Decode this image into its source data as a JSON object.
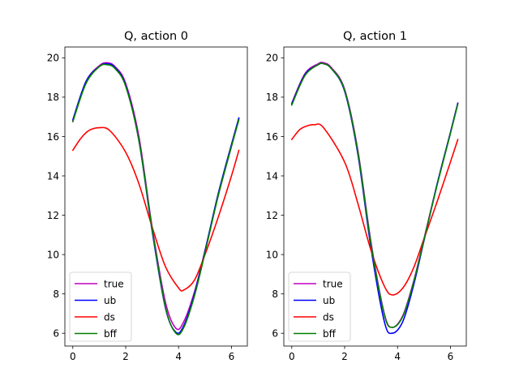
{
  "chart_data": [
    {
      "type": "line",
      "title": "Q, action 0",
      "xlabel": "",
      "ylabel": "",
      "xlim": [
        -0.3,
        6.6
      ],
      "ylim": [
        5.35,
        20.55
      ],
      "xticks": [
        0,
        2,
        4,
        6
      ],
      "yticks": [
        6,
        8,
        10,
        12,
        14,
        16,
        18,
        20
      ],
      "legend_position": "lower-left",
      "series": [
        {
          "name": "true",
          "color": "#bf00bf",
          "x": [
            0,
            0.5,
            1.0,
            1.3,
            1.6,
            2.0,
            2.5,
            3.0,
            3.5,
            3.9,
            4.2,
            4.6,
            5.0,
            5.5,
            6.0,
            6.28
          ],
          "y": [
            16.8,
            18.8,
            19.6,
            19.75,
            19.55,
            18.7,
            16.0,
            11.4,
            7.6,
            6.25,
            6.6,
            8.1,
            10.2,
            13.0,
            15.5,
            16.9
          ]
        },
        {
          "name": "ub",
          "color": "#0000ff",
          "x": [
            0,
            0.5,
            1.0,
            1.3,
            1.6,
            2.0,
            2.5,
            3.0,
            3.5,
            3.9,
            4.2,
            4.6,
            5.0,
            5.5,
            6.0,
            6.28
          ],
          "y": [
            16.85,
            18.8,
            19.55,
            19.7,
            19.5,
            18.6,
            15.8,
            11.2,
            7.3,
            6.05,
            6.4,
            8.0,
            10.2,
            13.1,
            15.6,
            16.95
          ]
        },
        {
          "name": "ds",
          "color": "#ff0000",
          "x": [
            0,
            0.3,
            0.6,
            1.0,
            1.4,
            2.0,
            2.5,
            3.0,
            3.5,
            4.0,
            4.2,
            4.6,
            5.0,
            5.5,
            6.0,
            6.28
          ],
          "y": [
            15.3,
            15.9,
            16.3,
            16.45,
            16.3,
            15.2,
            13.6,
            11.4,
            9.4,
            8.3,
            8.2,
            8.7,
            10.0,
            11.9,
            14.0,
            15.3
          ]
        },
        {
          "name": "bff",
          "color": "#008000",
          "x": [
            0,
            0.5,
            1.0,
            1.3,
            1.6,
            2.0,
            2.5,
            3.0,
            3.5,
            3.9,
            4.2,
            4.6,
            5.0,
            5.5,
            6.0,
            6.28
          ],
          "y": [
            16.75,
            18.7,
            19.55,
            19.65,
            19.45,
            18.55,
            15.8,
            11.3,
            7.35,
            6.0,
            6.3,
            7.9,
            10.1,
            13.0,
            15.5,
            16.85
          ]
        }
      ]
    },
    {
      "type": "line",
      "title": "Q, action 1",
      "xlabel": "",
      "ylabel": "",
      "xlim": [
        -0.3,
        6.6
      ],
      "ylim": [
        5.35,
        20.55
      ],
      "xticks": [
        0,
        2,
        4,
        6
      ],
      "yticks": [
        6,
        8,
        10,
        12,
        14,
        16,
        18,
        20
      ],
      "legend_position": "lower-left",
      "series": [
        {
          "name": "true",
          "color": "#bf00bf",
          "x": [
            0,
            0.5,
            1.0,
            1.2,
            1.5,
            2.0,
            2.5,
            3.0,
            3.5,
            3.8,
            4.2,
            4.6,
            5.0,
            5.5,
            6.0,
            6.28
          ],
          "y": [
            17.7,
            19.2,
            19.7,
            19.75,
            19.5,
            18.4,
            15.3,
            10.6,
            7.0,
            6.3,
            6.9,
            8.6,
            10.8,
            13.6,
            16.2,
            17.7
          ]
        },
        {
          "name": "ub",
          "color": "#0000ff",
          "x": [
            0,
            0.5,
            1.0,
            1.2,
            1.5,
            2.0,
            2.5,
            3.0,
            3.5,
            3.8,
            4.2,
            4.6,
            5.0,
            5.5,
            6.0,
            6.28
          ],
          "y": [
            17.65,
            19.15,
            19.65,
            19.7,
            19.45,
            18.3,
            15.1,
            10.3,
            6.6,
            6.0,
            6.6,
            8.4,
            10.7,
            13.6,
            16.2,
            17.7
          ]
        },
        {
          "name": "ds",
          "color": "#ff0000",
          "x": [
            0,
            0.3,
            0.6,
            0.85,
            1.2,
            2.0,
            2.5,
            3.0,
            3.5,
            3.8,
            4.2,
            4.6,
            5.0,
            5.5,
            6.0,
            6.28
          ],
          "y": [
            15.85,
            16.35,
            16.55,
            16.6,
            16.45,
            14.7,
            12.6,
            10.2,
            8.4,
            7.95,
            8.3,
            9.3,
            10.8,
            12.7,
            14.7,
            15.85
          ]
        },
        {
          "name": "bff",
          "color": "#008000",
          "x": [
            0,
            0.5,
            1.0,
            1.2,
            1.5,
            2.0,
            2.5,
            3.0,
            3.5,
            3.8,
            4.2,
            4.6,
            5.0,
            5.5,
            6.0,
            6.28
          ],
          "y": [
            17.6,
            19.1,
            19.65,
            19.7,
            19.45,
            18.35,
            15.2,
            10.5,
            6.95,
            6.3,
            6.85,
            8.55,
            10.75,
            13.55,
            16.15,
            17.65
          ]
        }
      ]
    }
  ]
}
